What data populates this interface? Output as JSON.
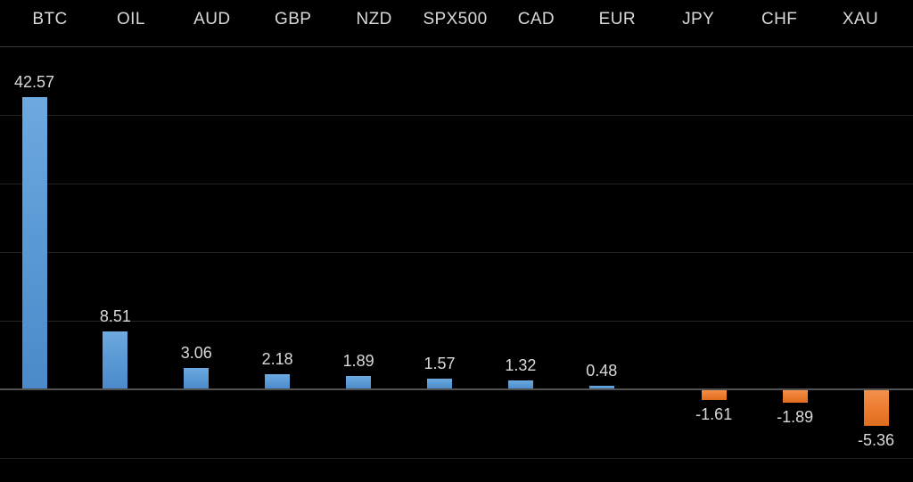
{
  "colors": {
    "background": "#000000",
    "positive_bar": "#5b9bd5",
    "negative_bar": "#ed7d31",
    "gridline": "#232323",
    "top_gridline": "#383838",
    "zero_axis": "#525252",
    "label_text": "#d9d9d9"
  },
  "chart_data": {
    "type": "bar",
    "title": "",
    "xlabel": "",
    "ylabel": "",
    "categories": [
      "BTC",
      "OIL",
      "AUD",
      "GBP",
      "NZD",
      "SPX500",
      "CAD",
      "EUR",
      "JPY",
      "CHF",
      "XAU"
    ],
    "values": [
      42.57,
      8.51,
      3.06,
      2.18,
      1.89,
      1.57,
      1.32,
      0.48,
      -1.61,
      -1.89,
      -5.36
    ],
    "value_labels": [
      "42.57",
      "8.51",
      "3.06",
      "2.18",
      "1.89",
      "1.57",
      "1.32",
      "0.48",
      "-1.61",
      "-1.89",
      "-5.36"
    ],
    "ylim": [
      -10,
      50
    ],
    "gridline_step": 10,
    "grid": true,
    "legend_position": "none",
    "category_labels_position": "top",
    "positive_series_color": "#5b9bd5",
    "negative_series_color": "#ed7d31"
  }
}
